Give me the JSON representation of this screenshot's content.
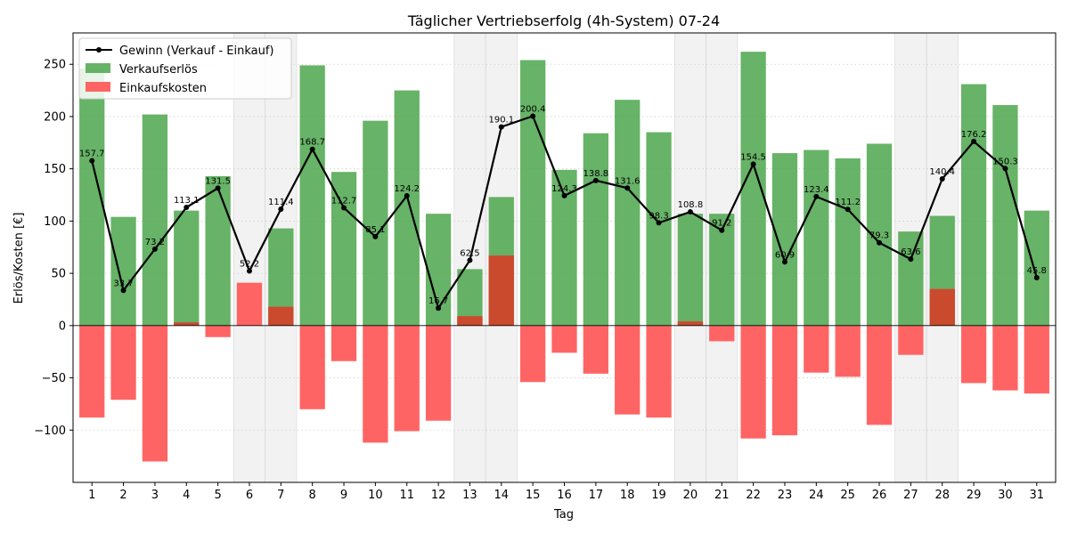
{
  "chart_data": {
    "type": "bar",
    "title": "Täglicher Vertriebserfolg (4h-System) 07-24",
    "xlabel": "Tag",
    "ylabel": "Erlös/Kosten [€]",
    "categories": [
      "1",
      "2",
      "3",
      "4",
      "5",
      "6",
      "7",
      "8",
      "9",
      "10",
      "11",
      "12",
      "13",
      "14",
      "15",
      "16",
      "17",
      "18",
      "19",
      "20",
      "21",
      "22",
      "23",
      "24",
      "25",
      "26",
      "27",
      "28",
      "29",
      "30",
      "31"
    ],
    "ylim": [
      -150,
      280
    ],
    "yticks": [
      -100,
      -50,
      0,
      50,
      100,
      150,
      200,
      250
    ],
    "grid": "horizontal-dotted",
    "legend_position": "top-left",
    "shaded_weekend_days": [
      6,
      7,
      13,
      14,
      20,
      21,
      27,
      28
    ],
    "series": [
      {
        "name": "Gewinn (Verkauf - Einkauf)",
        "kind": "line",
        "color": "#000000",
        "values": [
          157.7,
          33.7,
          73.2,
          113.1,
          131.5,
          52.2,
          111.4,
          168.7,
          112.7,
          85.1,
          124.2,
          16.7,
          62.5,
          190.1,
          200.4,
          124.3,
          138.8,
          131.6,
          98.3,
          108.8,
          91.2,
          154.5,
          60.9,
          123.4,
          111.2,
          79.3,
          63.6,
          140.4,
          176.2,
          150.3,
          45.8
        ],
        "labels": [
          "157.7",
          "33.7",
          "73.2",
          "113.1",
          "131.5",
          "52.2",
          "111.4",
          "168.7",
          "112.7",
          "85.1",
          "124.2",
          "16.7",
          "62.5",
          "190.1",
          "200.4",
          "124.3",
          "138.8",
          "131.6",
          "98.3",
          "108.8",
          "91.2",
          "154.5",
          "60.9",
          "123.4",
          "111.2",
          "79.3",
          "63.6",
          "140.4",
          "176.2",
          "150.3",
          "45.8"
        ]
      },
      {
        "name": "Verkaufserlös",
        "kind": "bar",
        "color": "#4ca64c",
        "values": [
          246,
          104,
          202,
          110,
          143,
          0,
          93,
          249,
          147,
          196,
          225,
          107,
          54,
          123,
          254,
          149,
          184,
          216,
          185,
          107,
          107,
          262,
          165,
          168,
          160,
          174,
          90,
          105,
          231,
          211,
          110
        ]
      },
      {
        "name": "Einkaufskosten",
        "kind": "bar",
        "color": "#ff5c5c",
        "values": [
          -88,
          -71,
          -130,
          3,
          -11,
          41,
          18,
          -80,
          -34,
          -112,
          -101,
          -91,
          9,
          67,
          -54,
          -26,
          -46,
          -85,
          -88,
          4,
          -15,
          -108,
          -105,
          -45,
          -49,
          -95,
          -28,
          35,
          -55,
          -62,
          -65
        ]
      }
    ]
  }
}
